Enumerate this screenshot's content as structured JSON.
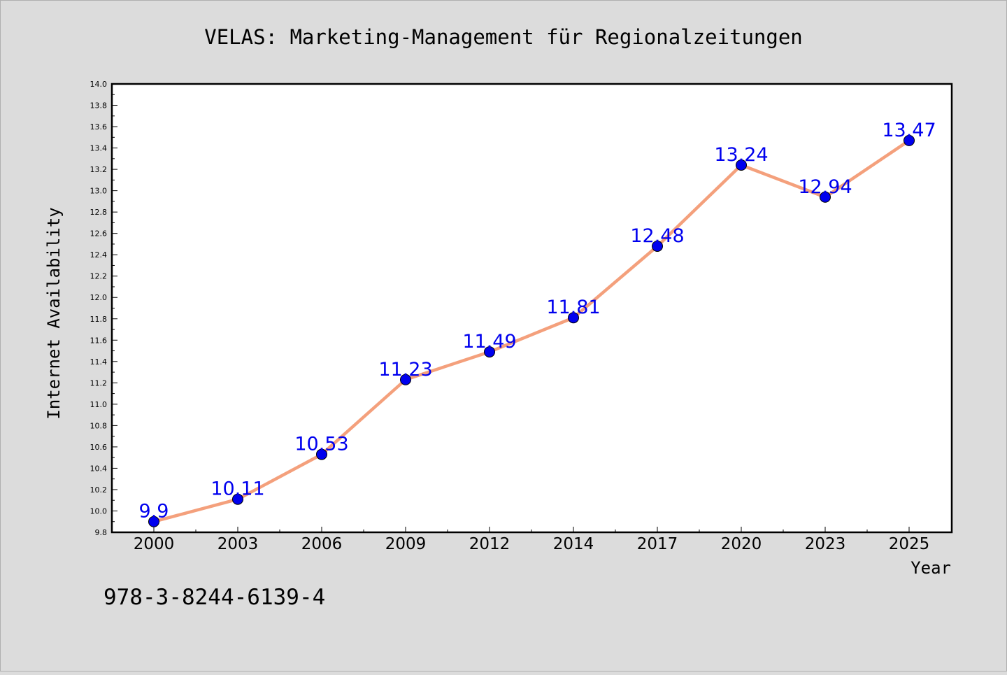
{
  "chart_data": {
    "type": "line",
    "title": "VELAS: Marketing-Management für Regionalzeitungen",
    "xlabel": "Year",
    "ylabel": "Internet Availability",
    "footnote": "978-3-8244-6139-4",
    "categories": [
      "2000",
      "2003",
      "2006",
      "2009",
      "2012",
      "2014",
      "2017",
      "2020",
      "2023",
      "2025"
    ],
    "series": [
      {
        "values": [
          9.9,
          10.11,
          10.53,
          11.23,
          11.49,
          11.81,
          12.48,
          13.24,
          12.94,
          13.47
        ],
        "data_labels": [
          "9.9",
          "10.11",
          "10.53",
          "11.23",
          "11.49",
          "11.81",
          "12.48",
          "13.24",
          "12.94",
          "13.47"
        ],
        "line_color": "#f4a07c",
        "marker_color": "#0000ee",
        "label_color": "#0000ee"
      }
    ],
    "ylim": [
      9.8,
      14.0
    ],
    "yticks": [
      "9.8",
      "10.0",
      "10.2",
      "10.4",
      "10.6",
      "10.8",
      "11.0",
      "11.2",
      "11.4",
      "11.6",
      "11.8",
      "12.0",
      "12.2",
      "12.4",
      "12.6",
      "12.8",
      "13.0",
      "13.2",
      "13.4",
      "13.6",
      "13.8",
      "14.0"
    ],
    "grid": false,
    "legend": false,
    "colors": {
      "figure_background": "#dcdcdc",
      "plot_background": "#ffffff",
      "axis": "#000000"
    }
  }
}
